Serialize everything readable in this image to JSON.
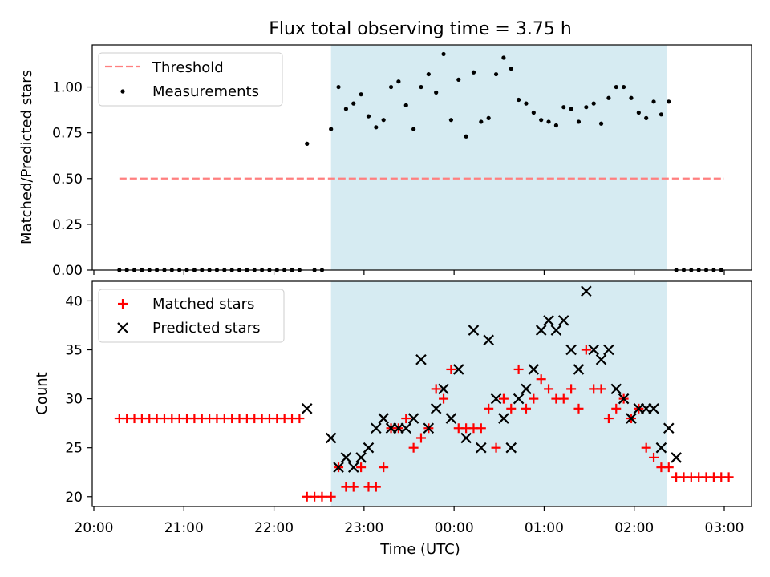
{
  "chart_data": [
    {
      "type": "scatter",
      "title": "Flux total observing time = 3.75 h",
      "xlabel": "",
      "ylabel": "Matched/Predicted stars",
      "ylim": [
        0,
        1.23
      ],
      "xlim": [
        "20:00",
        "03:00"
      ],
      "x_unit": "hours",
      "x_ticks": [
        "20:00",
        "21:00",
        "22:00",
        "23:00",
        "00:00",
        "01:00",
        "02:00",
        "03:00"
      ],
      "x_tick_labels_shown": false,
      "y_ticks": [
        "0.00",
        "0.25",
        "0.50",
        "0.75",
        "1.00"
      ],
      "legend": {
        "position": "top-left",
        "entries": [
          "Threshold",
          "Measurements"
        ]
      },
      "shaded_interval": [
        "22:38",
        "02:22"
      ],
      "threshold": {
        "name": "Threshold",
        "y": 0.5,
        "x_range": [
          "20:17",
          "03:00"
        ],
        "color": "#ff7f7f",
        "style": "dashed"
      },
      "series": [
        {
          "name": "Measurements",
          "color": "#000000",
          "marker": "dot",
          "points": [
            [
              "20:17",
              0
            ],
            [
              "20:22",
              0
            ],
            [
              "20:27",
              0
            ],
            [
              "20:32",
              0
            ],
            [
              "20:37",
              0
            ],
            [
              "20:42",
              0
            ],
            [
              "20:47",
              0
            ],
            [
              "20:52",
              0
            ],
            [
              "20:57",
              0
            ],
            [
              "21:02",
              0
            ],
            [
              "21:07",
              0
            ],
            [
              "21:12",
              0
            ],
            [
              "21:17",
              0
            ],
            [
              "21:22",
              0
            ],
            [
              "21:27",
              0
            ],
            [
              "21:32",
              0
            ],
            [
              "21:37",
              0
            ],
            [
              "21:42",
              0
            ],
            [
              "21:47",
              0
            ],
            [
              "21:52",
              0
            ],
            [
              "21:57",
              0
            ],
            [
              "22:02",
              0
            ],
            [
              "22:07",
              0
            ],
            [
              "22:12",
              0
            ],
            [
              "22:17",
              0
            ],
            [
              "22:22",
              0.69
            ],
            [
              "22:27",
              0
            ],
            [
              "22:32",
              0
            ],
            [
              "22:38",
              0.77
            ],
            [
              "22:43",
              1.0
            ],
            [
              "22:48",
              0.88
            ],
            [
              "22:53",
              0.91
            ],
            [
              "22:58",
              0.96
            ],
            [
              "23:03",
              0.84
            ],
            [
              "23:08",
              0.78
            ],
            [
              "23:13",
              0.82
            ],
            [
              "23:18",
              1.0
            ],
            [
              "23:23",
              1.03
            ],
            [
              "23:28",
              0.9
            ],
            [
              "23:33",
              0.77
            ],
            [
              "23:38",
              1.0
            ],
            [
              "23:43",
              1.07
            ],
            [
              "23:48",
              0.97
            ],
            [
              "23:53",
              1.18
            ],
            [
              "23:58",
              0.82
            ],
            [
              "00:03",
              1.04
            ],
            [
              "00:08",
              0.73
            ],
            [
              "00:13",
              1.08
            ],
            [
              "00:18",
              0.81
            ],
            [
              "00:23",
              0.83
            ],
            [
              "00:28",
              1.07
            ],
            [
              "00:33",
              1.16
            ],
            [
              "00:38",
              1.1
            ],
            [
              "00:43",
              0.93
            ],
            [
              "00:48",
              0.91
            ],
            [
              "00:53",
              0.86
            ],
            [
              "00:58",
              0.82
            ],
            [
              "01:03",
              0.81
            ],
            [
              "01:08",
              0.79
            ],
            [
              "01:13",
              0.89
            ],
            [
              "01:18",
              0.88
            ],
            [
              "01:23",
              0.81
            ],
            [
              "01:28",
              0.89
            ],
            [
              "01:33",
              0.91
            ],
            [
              "01:38",
              0.8
            ],
            [
              "01:43",
              0.94
            ],
            [
              "01:48",
              1.0
            ],
            [
              "01:53",
              1.0
            ],
            [
              "01:58",
              0.94
            ],
            [
              "02:03",
              0.86
            ],
            [
              "02:08",
              0.83
            ],
            [
              "02:13",
              0.92
            ],
            [
              "02:18",
              0.85
            ],
            [
              "02:23",
              0.92
            ],
            [
              "02:28",
              0
            ],
            [
              "02:33",
              0
            ],
            [
              "02:38",
              0
            ],
            [
              "02:43",
              0
            ],
            [
              "02:48",
              0
            ],
            [
              "02:53",
              0
            ],
            [
              "02:58",
              0
            ]
          ]
        }
      ]
    },
    {
      "type": "scatter",
      "title": "",
      "xlabel": "Time (UTC)",
      "ylabel": "Count",
      "ylim": [
        19,
        42
      ],
      "xlim": [
        "20:00",
        "03:00"
      ],
      "x_ticks": [
        "20:00",
        "21:00",
        "22:00",
        "23:00",
        "00:00",
        "01:00",
        "02:00",
        "03:00"
      ],
      "y_ticks": [
        "20",
        "25",
        "30",
        "35",
        "40"
      ],
      "legend": {
        "position": "top-left",
        "entries": [
          "Matched stars",
          "Predicted stars"
        ]
      },
      "shaded_interval": [
        "22:38",
        "02:22"
      ],
      "series": [
        {
          "name": "Matched stars",
          "color": "#ff0000",
          "marker": "plus",
          "points": [
            [
              "20:17",
              28
            ],
            [
              "20:22",
              28
            ],
            [
              "20:27",
              28
            ],
            [
              "20:32",
              28
            ],
            [
              "20:37",
              28
            ],
            [
              "20:42",
              28
            ],
            [
              "20:47",
              28
            ],
            [
              "20:52",
              28
            ],
            [
              "20:57",
              28
            ],
            [
              "21:02",
              28
            ],
            [
              "21:07",
              28
            ],
            [
              "21:12",
              28
            ],
            [
              "21:17",
              28
            ],
            [
              "21:22",
              28
            ],
            [
              "21:27",
              28
            ],
            [
              "21:32",
              28
            ],
            [
              "21:37",
              28
            ],
            [
              "21:42",
              28
            ],
            [
              "21:47",
              28
            ],
            [
              "21:52",
              28
            ],
            [
              "21:57",
              28
            ],
            [
              "22:02",
              28
            ],
            [
              "22:07",
              28
            ],
            [
              "22:12",
              28
            ],
            [
              "22:17",
              28
            ],
            [
              "22:22",
              20
            ],
            [
              "22:27",
              20
            ],
            [
              "22:32",
              20
            ],
            [
              "22:38",
              20
            ],
            [
              "22:43",
              23
            ],
            [
              "22:48",
              21
            ],
            [
              "22:53",
              21
            ],
            [
              "22:58",
              23
            ],
            [
              "23:03",
              21
            ],
            [
              "23:08",
              21
            ],
            [
              "23:13",
              23
            ],
            [
              "23:18",
              27
            ],
            [
              "23:23",
              27
            ],
            [
              "23:28",
              28
            ],
            [
              "23:33",
              25
            ],
            [
              "23:38",
              26
            ],
            [
              "23:43",
              27
            ],
            [
              "23:48",
              31
            ],
            [
              "23:53",
              30
            ],
            [
              "23:58",
              33
            ],
            [
              "00:03",
              27
            ],
            [
              "00:08",
              27
            ],
            [
              "00:13",
              27
            ],
            [
              "00:18",
              27
            ],
            [
              "00:23",
              29
            ],
            [
              "00:28",
              25
            ],
            [
              "00:33",
              30
            ],
            [
              "00:38",
              29
            ],
            [
              "00:43",
              33
            ],
            [
              "00:48",
              29
            ],
            [
              "00:53",
              30
            ],
            [
              "00:58",
              32
            ],
            [
              "01:03",
              31
            ],
            [
              "01:08",
              30
            ],
            [
              "01:13",
              30
            ],
            [
              "01:18",
              31
            ],
            [
              "01:23",
              29
            ],
            [
              "01:28",
              35
            ],
            [
              "01:33",
              31
            ],
            [
              "01:38",
              31
            ],
            [
              "01:43",
              28
            ],
            [
              "01:48",
              29
            ],
            [
              "01:53",
              30
            ],
            [
              "01:58",
              28
            ],
            [
              "02:03",
              29
            ],
            [
              "02:08",
              25
            ],
            [
              "02:13",
              24
            ],
            [
              "02:18",
              23
            ],
            [
              "02:23",
              23
            ],
            [
              "02:28",
              22
            ],
            [
              "02:33",
              22
            ],
            [
              "02:38",
              22
            ],
            [
              "02:43",
              22
            ],
            [
              "02:48",
              22
            ],
            [
              "02:53",
              22
            ],
            [
              "02:58",
              22
            ],
            [
              "03:03",
              22
            ]
          ]
        },
        {
          "name": "Predicted stars",
          "color": "#000000",
          "marker": "x",
          "points": [
            [
              "22:22",
              29
            ],
            [
              "22:38",
              26
            ],
            [
              "22:43",
              23
            ],
            [
              "22:48",
              24
            ],
            [
              "22:53",
              23
            ],
            [
              "22:58",
              24
            ],
            [
              "23:03",
              25
            ],
            [
              "23:08",
              27
            ],
            [
              "23:13",
              28
            ],
            [
              "23:18",
              27
            ],
            [
              "23:23",
              27
            ],
            [
              "23:28",
              27
            ],
            [
              "23:33",
              28
            ],
            [
              "23:38",
              34
            ],
            [
              "23:43",
              27
            ],
            [
              "23:48",
              29
            ],
            [
              "23:53",
              31
            ],
            [
              "23:58",
              28
            ],
            [
              "00:03",
              33
            ],
            [
              "00:08",
              26
            ],
            [
              "00:13",
              37
            ],
            [
              "00:18",
              25
            ],
            [
              "00:23",
              36
            ],
            [
              "00:28",
              30
            ],
            [
              "00:33",
              28
            ],
            [
              "00:38",
              25
            ],
            [
              "00:43",
              30
            ],
            [
              "00:48",
              31
            ],
            [
              "00:53",
              33
            ],
            [
              "00:58",
              37
            ],
            [
              "01:03",
              38
            ],
            [
              "01:08",
              37
            ],
            [
              "01:13",
              38
            ],
            [
              "01:18",
              35
            ],
            [
              "01:23",
              33
            ],
            [
              "01:28",
              41
            ],
            [
              "01:33",
              35
            ],
            [
              "01:38",
              34
            ],
            [
              "01:43",
              35
            ],
            [
              "01:48",
              31
            ],
            [
              "01:53",
              30
            ],
            [
              "01:58",
              28
            ],
            [
              "02:03",
              29
            ],
            [
              "02:08",
              29
            ],
            [
              "02:13",
              29
            ],
            [
              "02:18",
              25
            ],
            [
              "02:23",
              27
            ],
            [
              "02:28",
              24
            ]
          ]
        }
      ]
    }
  ]
}
